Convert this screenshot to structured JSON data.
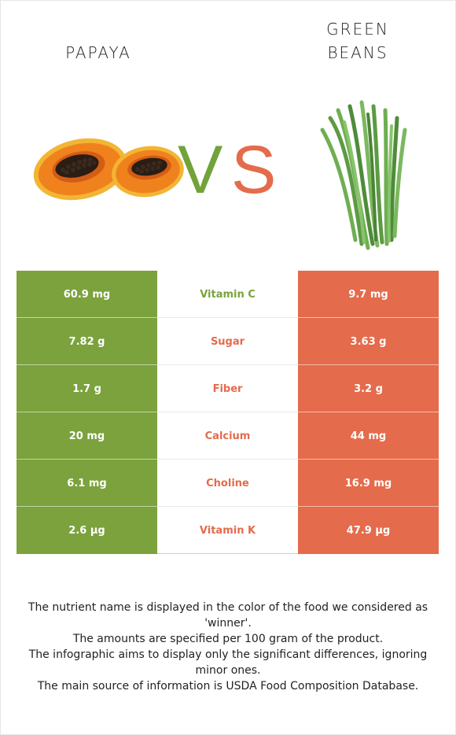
{
  "left_food": {
    "name": "PAPAYA",
    "color": "#7ba23c"
  },
  "right_food": {
    "name_line1": "GREEN",
    "name_line2": "BEANS",
    "color": "#e46b4b"
  },
  "vs": {
    "v": "V",
    "s": "S"
  },
  "rows": [
    {
      "left": "60.9 mg",
      "nutrient": "Vitamin C",
      "right": "9.7 mg",
      "winner_color": "#7ba23c"
    },
    {
      "left": "7.82 g",
      "nutrient": "Sugar",
      "right": "3.63 g",
      "winner_color": "#e46b4b"
    },
    {
      "left": "1.7 g",
      "nutrient": "Fiber",
      "right": "3.2 g",
      "winner_color": "#e46b4b"
    },
    {
      "left": "20 mg",
      "nutrient": "Calcium",
      "right": "44 mg",
      "winner_color": "#e46b4b"
    },
    {
      "left": "6.1 mg",
      "nutrient": "Choline",
      "right": "16.9 mg",
      "winner_color": "#e46b4b"
    },
    {
      "left": "2.6 µg",
      "nutrient": "Vitamin K",
      "right": "47.9 µg",
      "winner_color": "#e46b4b"
    }
  ],
  "footnote": {
    "line1": "The nutrient name is displayed in the color of the food we considered as 'winner'.",
    "line2": "The amounts are specified per 100 gram of the product.",
    "line3": "The infographic aims to display only the significant differences, ignoring minor ones.",
    "line4": "The main source of information is USDA Food Composition Database."
  }
}
